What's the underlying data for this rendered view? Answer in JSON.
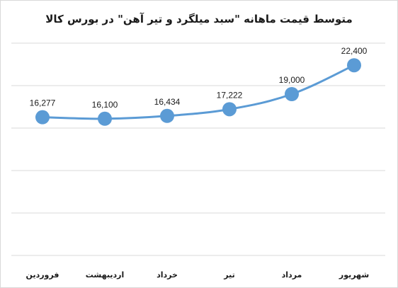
{
  "chart_data": {
    "type": "line",
    "title": "متوسط قیمت ماهانه \"سبد میلگرد و تیر آهن\" در بورس کالا",
    "categories": [
      "فروردین",
      "اردیبهشت",
      "خرداد",
      "تیر",
      "مرداد",
      "شهریور"
    ],
    "values": [
      16277,
      16100,
      16434,
      17222,
      19000,
      22400
    ],
    "data_labels": [
      "16,277",
      "16,100",
      "16,434",
      "17,222",
      "19,000",
      "22,400"
    ],
    "xlabel": "",
    "ylabel": "",
    "ylim": [
      0,
      25000
    ],
    "y_gridlines": [
      0,
      5000,
      10000,
      15000,
      20000,
      25000
    ],
    "grid": true,
    "y_tick_labels_visible": false,
    "legend": "none",
    "line_color": "#5b9bd5",
    "marker_color": "#5b9bd5",
    "grid_color": "#d9d9d9"
  }
}
